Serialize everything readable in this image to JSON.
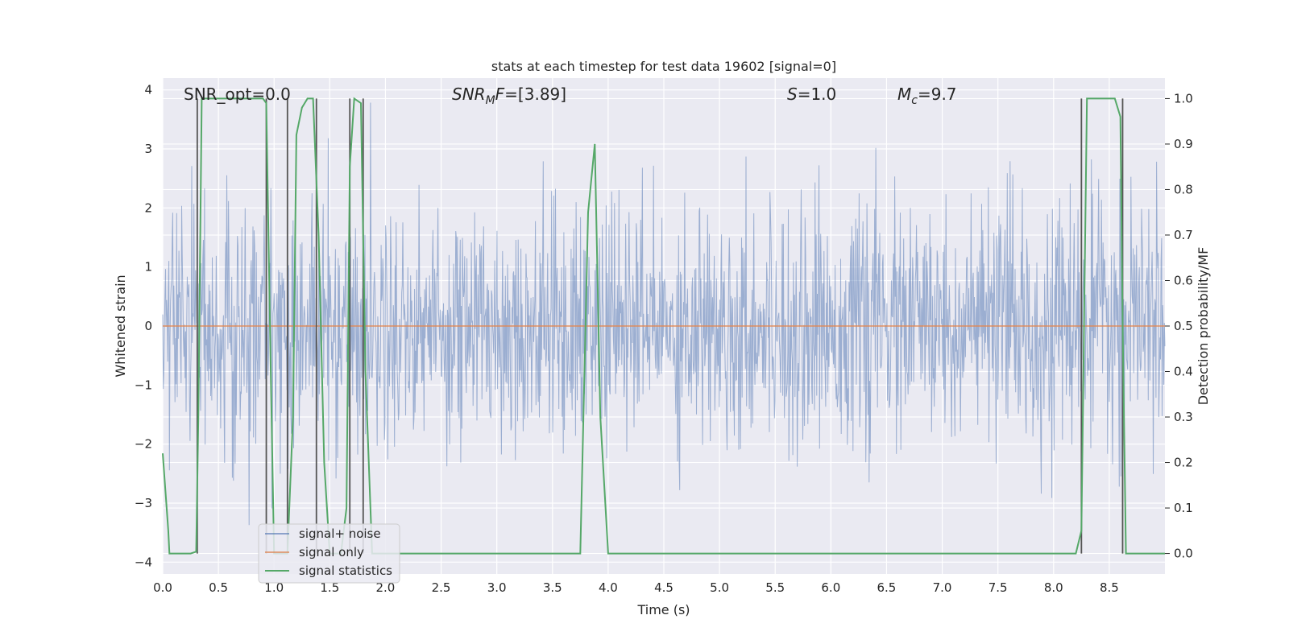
{
  "chart_data": {
    "type": "line",
    "title": "stats at each timestep for test data 19602 [signal=0]",
    "xlabel": "Time (s)",
    "ylabel": "Whitened strain",
    "y2label": "Detection probability/MF",
    "xlim": [
      0,
      9.0
    ],
    "ylim": [
      -4.2,
      4.2
    ],
    "y2lim": [
      -0.045,
      1.045
    ],
    "x_ticks": [
      0.0,
      0.5,
      1.0,
      1.5,
      2.0,
      2.5,
      3.0,
      3.5,
      4.0,
      4.5,
      5.0,
      5.5,
      6.0,
      6.5,
      7.0,
      7.5,
      8.0,
      8.5
    ],
    "x_tick_labels": [
      "0.0",
      "0.5",
      "1.0",
      "1.5",
      "2.0",
      "2.5",
      "3.0",
      "3.5",
      "4.0",
      "4.5",
      "5.0",
      "5.5",
      "6.0",
      "6.5",
      "7.0",
      "7.5",
      "8.0",
      "8.5"
    ],
    "y_ticks": [
      4,
      3,
      2,
      1,
      0,
      -1,
      -2,
      -3,
      -4
    ],
    "y_tick_labels": [
      "4",
      "3",
      "2",
      "1",
      "0",
      "−1",
      "−2",
      "−3",
      "−4"
    ],
    "y2_ticks": [
      1.0,
      0.9,
      0.8,
      0.7,
      0.6,
      0.5,
      0.4,
      0.3,
      0.2,
      0.1,
      0.0
    ],
    "y2_tick_labels": [
      "1.0",
      "0.9",
      "0.8",
      "0.7",
      "0.6",
      "0.5",
      "0.4",
      "0.3",
      "0.2",
      "0.1",
      "0.0"
    ],
    "annotations": {
      "snr_opt": "SNR_opt=0.0",
      "snr_mf_main": "SNR",
      "snr_mf_sub": "M",
      "snr_mf_rest": "F",
      "snr_mf_value": "=[3.89]",
      "s_var": "S",
      "s_value": "=1.0",
      "mc_main": "M",
      "mc_sub": "c",
      "mc_value": "=9.7"
    },
    "legend": {
      "position": "lower-left",
      "entries": [
        "signal+ noise",
        "signal only",
        "signal statistics"
      ]
    },
    "series": [
      {
        "name": "signal+ noise",
        "axis": "left",
        "kind": "noise",
        "sigma": 1.0,
        "color": "#4c72b0",
        "display_range": [
          -4.2,
          4.0
        ]
      },
      {
        "name": "signal only",
        "axis": "left",
        "x": [
          0.0,
          9.0
        ],
        "y": [
          0.0,
          0.0
        ],
        "color": "#dd8452"
      },
      {
        "name": "signal statistics",
        "axis": "right",
        "color": "#55a868",
        "x": [
          0.0,
          0.05,
          0.06,
          0.1,
          0.25,
          0.3,
          0.32,
          0.35,
          0.38,
          0.9,
          0.93,
          0.97,
          1.0,
          1.05,
          1.12,
          1.17,
          1.2,
          1.25,
          1.3,
          1.35,
          1.4,
          1.45,
          1.5,
          1.55,
          1.6,
          1.65,
          1.68,
          1.72,
          1.78,
          1.82,
          1.88,
          1.95,
          2.1,
          3.6,
          3.75,
          3.82,
          3.88,
          3.93,
          4.0,
          8.2,
          8.25,
          8.3,
          8.55,
          8.6,
          8.62,
          8.65,
          9.0
        ],
        "y": [
          0.22,
          0.05,
          0.0,
          0.0,
          0.0,
          0.004,
          0.3,
          1.0,
          1.0,
          1.0,
          0.99,
          0.4,
          0.0,
          0.0,
          0.0,
          0.3,
          0.92,
          0.98,
          1.0,
          1.0,
          0.7,
          0.2,
          0.0,
          0.0,
          0.0,
          0.1,
          0.85,
          1.0,
          0.99,
          0.4,
          0.0,
          0.0,
          0.0,
          0.0,
          0.0,
          0.75,
          0.9,
          0.3,
          0.0,
          0.0,
          0.05,
          1.0,
          1.0,
          0.96,
          0.5,
          0.0,
          0.0
        ]
      }
    ],
    "vertical_lines": {
      "color": "#555555",
      "x": [
        0.31,
        0.93,
        1.12,
        1.38,
        1.68,
        1.8,
        8.25,
        8.62
      ]
    },
    "grid": true
  }
}
